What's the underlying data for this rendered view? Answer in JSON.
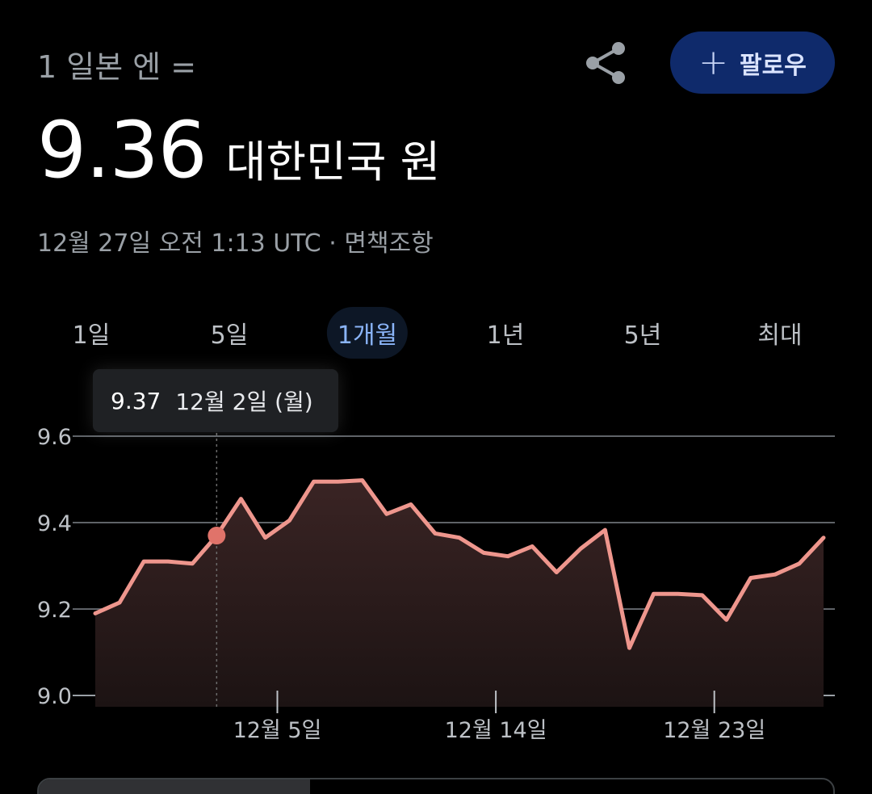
{
  "header": {
    "conversion_label": "1 일본 엔 =",
    "share_icon": "share-icon",
    "follow_plus": "+",
    "follow_label": "팔로우"
  },
  "rate": {
    "value": "9.36",
    "unit": "대한민국 원"
  },
  "timestamp": "12월 27일 오전 1:13 UTC · 면책조항",
  "tabs": [
    {
      "label": "1일",
      "active": false
    },
    {
      "label": "5일",
      "active": false
    },
    {
      "label": "1개월",
      "active": true
    },
    {
      "label": "1년",
      "active": false
    },
    {
      "label": "5년",
      "active": false
    },
    {
      "label": "최대",
      "active": false
    }
  ],
  "tooltip": {
    "value": "9.37",
    "date": "12월 2일 (월)"
  },
  "colors": {
    "accent": "#8ab4f8",
    "line": "#ee968d",
    "marker": "#e0736a",
    "follow_bg": "#0f2a6b"
  },
  "chart_data": {
    "type": "area",
    "ylim": [
      9.0,
      9.6
    ],
    "yticks": [
      "9.6",
      "9.4",
      "9.2",
      "9.0"
    ],
    "ytick_values": [
      9.6,
      9.4,
      9.2,
      9.0
    ],
    "xlabels": [
      {
        "label": "12월 5일",
        "x": 7.5
      },
      {
        "label": "12월 14일",
        "x": 16.5
      },
      {
        "label": "12월 23일",
        "x": 25.5
      }
    ],
    "xlim": [
      0,
      30
    ],
    "highlight_index": 5,
    "points": [
      {
        "x": 0.0,
        "y": 9.19
      },
      {
        "x": 1.0,
        "y": 9.215
      },
      {
        "x": 2.0,
        "y": 9.31
      },
      {
        "x": 3.0,
        "y": 9.31
      },
      {
        "x": 4.0,
        "y": 9.305
      },
      {
        "x": 5.0,
        "y": 9.37
      },
      {
        "x": 6.0,
        "y": 9.455
      },
      {
        "x": 7.0,
        "y": 9.365
      },
      {
        "x": 8.0,
        "y": 9.405
      },
      {
        "x": 9.0,
        "y": 9.495
      },
      {
        "x": 10.0,
        "y": 9.495
      },
      {
        "x": 11.0,
        "y": 9.498
      },
      {
        "x": 12.0,
        "y": 9.42
      },
      {
        "x": 13.0,
        "y": 9.442
      },
      {
        "x": 14.0,
        "y": 9.375
      },
      {
        "x": 15.0,
        "y": 9.365
      },
      {
        "x": 16.0,
        "y": 9.33
      },
      {
        "x": 17.0,
        "y": 9.322
      },
      {
        "x": 18.0,
        "y": 9.345
      },
      {
        "x": 19.0,
        "y": 9.285
      },
      {
        "x": 20.0,
        "y": 9.34
      },
      {
        "x": 21.0,
        "y": 9.383
      },
      {
        "x": 22.0,
        "y": 9.11
      },
      {
        "x": 23.0,
        "y": 9.235
      },
      {
        "x": 24.0,
        "y": 9.235
      },
      {
        "x": 25.0,
        "y": 9.232
      },
      {
        "x": 26.0,
        "y": 9.175
      },
      {
        "x": 27.0,
        "y": 9.272
      },
      {
        "x": 28.0,
        "y": 9.28
      },
      {
        "x": 29.0,
        "y": 9.305
      },
      {
        "x": 30.0,
        "y": 9.365
      }
    ]
  }
}
